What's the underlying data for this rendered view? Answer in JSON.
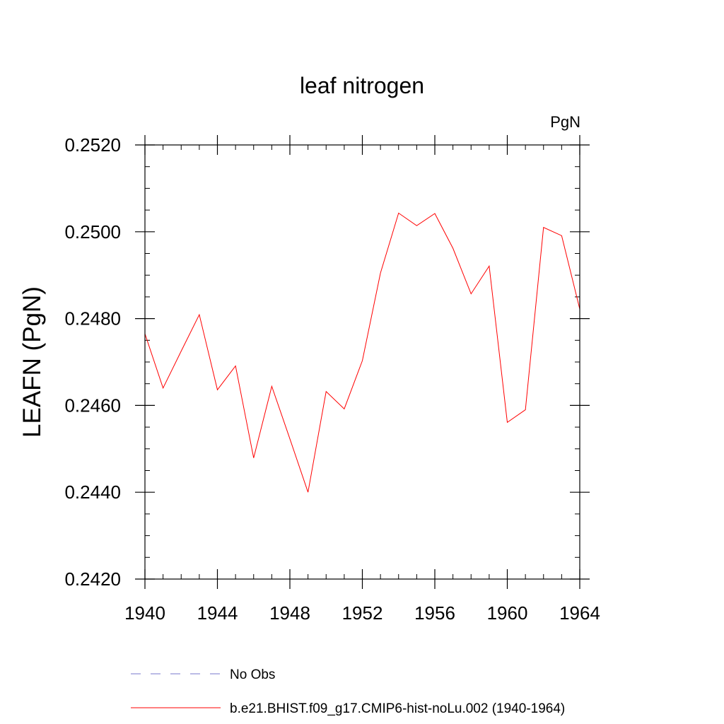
{
  "chart_data": {
    "type": "line",
    "title": "leaf nitrogen",
    "units_label": "PgN",
    "xlabel": "",
    "ylabel": "LEAFN  (PgN)",
    "xlim": [
      1940,
      1964
    ],
    "ylim": [
      0.242,
      0.252
    ],
    "x_ticks": [
      1940,
      1944,
      1948,
      1952,
      1956,
      1960,
      1964
    ],
    "x_tick_labels": [
      "1940",
      "1944",
      "1948",
      "1952",
      "1956",
      "1960",
      "1964"
    ],
    "y_ticks": [
      0.242,
      0.244,
      0.246,
      0.248,
      0.25,
      0.252
    ],
    "y_tick_labels": [
      "0.2420",
      "0.2440",
      "0.2460",
      "0.2480",
      "0.2500",
      "0.2520"
    ],
    "x_minor_step": 1,
    "y_minor_step": 0.0005,
    "grid": false,
    "series": [
      {
        "name": "b.e21.BHIST.f09_g17.CMIP6-hist-noLu.002 (1940-1964)",
        "color": "#ff0000",
        "dash": "solid",
        "x": [
          1940,
          1941,
          1942,
          1943,
          1944,
          1945,
          1946,
          1947,
          1948,
          1949,
          1950,
          1951,
          1952,
          1953,
          1954,
          1955,
          1956,
          1957,
          1958,
          1959,
          1960,
          1961,
          1962,
          1963,
          1964
        ],
        "values": [
          0.24765,
          0.2464,
          0.24725,
          0.24809,
          0.24636,
          0.24691,
          0.24479,
          0.24644,
          0.24523,
          0.244,
          0.24632,
          0.24592,
          0.24703,
          0.24905,
          0.25043,
          0.25014,
          0.25042,
          0.24962,
          0.24857,
          0.24921,
          0.24561,
          0.2459,
          0.2501,
          0.24991,
          0.24822
        ]
      }
    ],
    "legend": {
      "position": "bottom",
      "entries": [
        {
          "label": "No Obs",
          "color": "#7777cc",
          "dash": "dashed"
        },
        {
          "label": "b.e21.BHIST.f09_g17.CMIP6-hist-noLu.002 (1940-1964)",
          "color": "#ff0000",
          "dash": "solid"
        }
      ]
    }
  }
}
